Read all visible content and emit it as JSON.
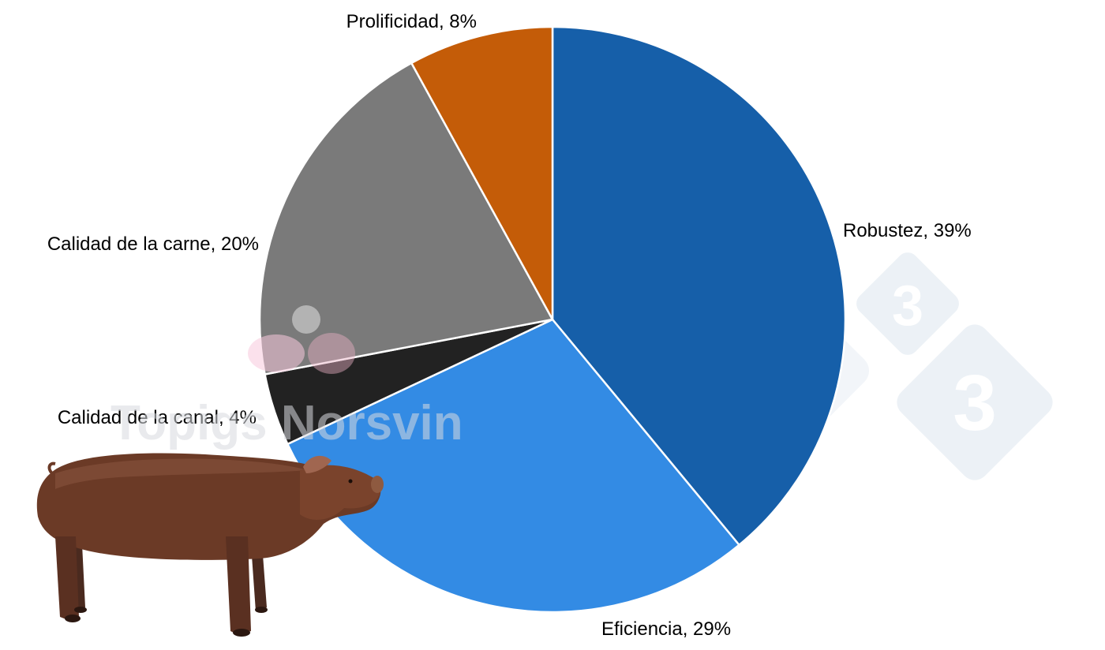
{
  "chart_data": {
    "type": "pie",
    "title": "",
    "start_angle_deg": 0,
    "direction": "clockwise",
    "slices": [
      {
        "label": "Robustez, 39%",
        "name": "Robustez",
        "value": 39,
        "color": "#165fa9"
      },
      {
        "label": "Eficiencia, 29%",
        "name": "Eficiencia",
        "value": 29,
        "color": "#338be4"
      },
      {
        "label": "Calidad de la canal, 4%",
        "name": "Calidad de la canal",
        "value": 4,
        "color": "#222222"
      },
      {
        "label": "Calidad de la carne, 20%",
        "name": "Calidad de la carne",
        "value": 20,
        "color": "#7a7a7a"
      },
      {
        "label": "Prolificidad, 8%",
        "name": "Prolificidad",
        "value": 8,
        "color": "#c45c08"
      }
    ]
  },
  "watermarks": {
    "brand_text": "Topigs Norsvin",
    "logo_digit": "3"
  },
  "illustration": {
    "icon": "pig-icon"
  }
}
